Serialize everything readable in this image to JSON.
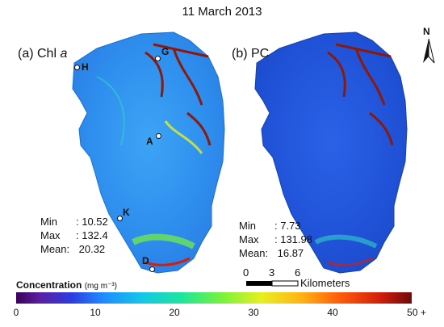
{
  "title": "11 March 2013",
  "panels": [
    {
      "label_prefix": "(a) Chl ",
      "label_italic": "a",
      "stats": {
        "min_label": "Min",
        "min": ": 10.52",
        "max_label": "Max",
        "max": ": 132.4",
        "mean_label": "Mean:",
        "mean": "20.32"
      }
    },
    {
      "label_prefix": "(b) PC",
      "label_italic": "",
      "stats": {
        "min_label": "Min",
        "min": ": 7.73",
        "max_label": "Max",
        "max": ": 131.98",
        "mean_label": "Mean:",
        "mean": "16.87"
      }
    }
  ],
  "sites": {
    "H": "H",
    "G": "G",
    "A": "A",
    "K": "K",
    "D": "D"
  },
  "north": "N",
  "scalebar": {
    "ticks": [
      "0",
      "3",
      "6"
    ],
    "unit": "Kilometers"
  },
  "legend": {
    "title": "Concentration",
    "unit": "(mg m⁻³)",
    "ticks": [
      "0",
      "10",
      "20",
      "30",
      "40",
      "50 +"
    ]
  },
  "colors": {
    "low": "#3c005a",
    "mid": "#1e8cff",
    "high": "#6e0a0a",
    "lake_body": "#2a8cf0",
    "bloom": "#8b1a0a"
  }
}
